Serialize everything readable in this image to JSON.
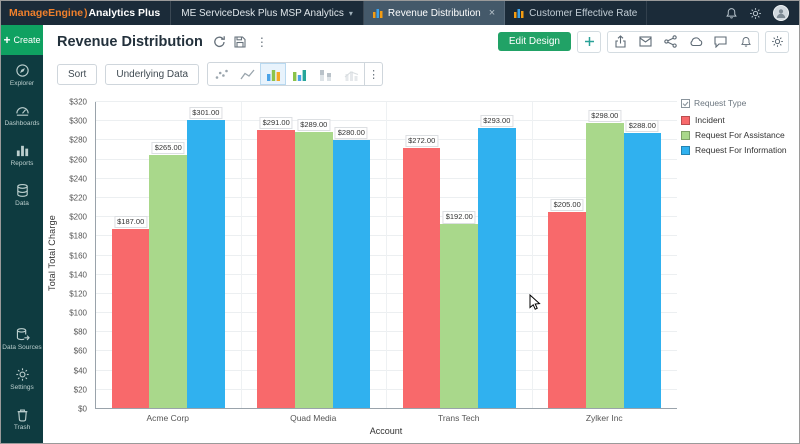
{
  "topbar": {
    "logo": {
      "brand": "ManageEngine",
      "separator": ")",
      "product": "Analytics Plus"
    },
    "workspace_tab": "ME ServiceDesk Plus MSP Analytics",
    "tabs": [
      {
        "label": "Revenue Distribution",
        "active": true,
        "closable": true
      },
      {
        "label": "Customer Effective Rate",
        "active": false,
        "closable": false
      }
    ]
  },
  "sidebar": {
    "create_label": "Create",
    "items": [
      {
        "id": "explorer",
        "label": "Explorer"
      },
      {
        "id": "dashboards",
        "label": "Dashboards"
      },
      {
        "id": "reports",
        "label": "Reports"
      },
      {
        "id": "data",
        "label": "Data"
      }
    ],
    "bottom_items": [
      {
        "id": "data-sources",
        "label": "Data Sources"
      },
      {
        "id": "settings",
        "label": "Settings"
      },
      {
        "id": "trash",
        "label": "Trash"
      }
    ]
  },
  "header": {
    "title": "Revenue Distribution",
    "edit_design_label": "Edit Design"
  },
  "toolbar": {
    "sort_label": "Sort",
    "underlying_data_label": "Underlying Data"
  },
  "chart_data": {
    "type": "bar",
    "categories": [
      "Acme Corp",
      "Quad Media",
      "Trans Tech",
      "Zylker Inc"
    ],
    "series": [
      {
        "name": "Incident",
        "color": "#f8696b",
        "values": [
          187,
          291,
          272,
          205
        ],
        "labels": [
          "$187.00",
          "$291.00",
          "$272.00",
          "$205.00"
        ]
      },
      {
        "name": "Request For Assistance",
        "color": "#a9d88b",
        "values": [
          265,
          289,
          192,
          298
        ],
        "labels": [
          "$265.00",
          "$289.00",
          "$192.00",
          "$298.00"
        ]
      },
      {
        "name": "Request For Information",
        "color": "#30b1ef",
        "values": [
          301,
          280,
          293,
          288
        ],
        "labels": [
          "$301.00",
          "$280.00",
          "$293.00",
          "$288.00"
        ]
      }
    ],
    "xlabel": "Account",
    "ylabel": "Total Total Charge",
    "ylim": [
      0,
      320
    ],
    "ytick_step": 20,
    "ytick_prefix": "$",
    "grid": true,
    "legend_position": "right",
    "legend_title": "Request Type"
  }
}
